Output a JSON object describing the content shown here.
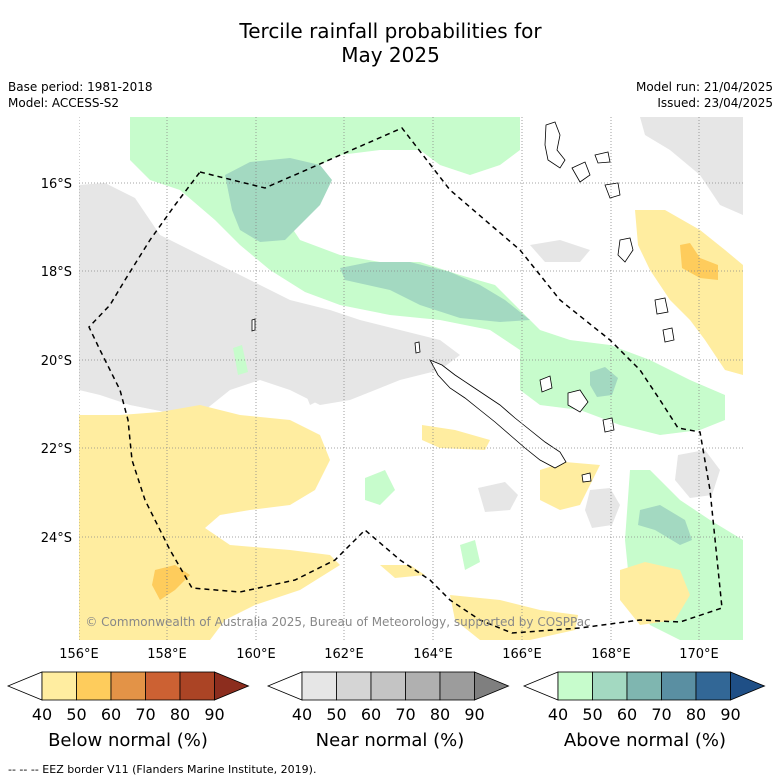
{
  "title_line1": "Tercile rainfall probabilities for",
  "title_line2": "May 2025",
  "base_period": "Base period: 1981-2018",
  "model": "Model: ACCESS-S2",
  "model_run": "Model run: 21/04/2025",
  "issued": "Issued: 23/04/2025",
  "copyright": "© Commonwealth of Australia 2025, Bureau of Meteorology, supported by COSPPac",
  "lat_labels": [
    "16°S",
    "18°S",
    "20°S",
    "22°S",
    "24°S"
  ],
  "lon_labels": [
    "156°E",
    "158°E",
    "160°E",
    "162°E",
    "164°E",
    "166°E",
    "168°E",
    "170°E"
  ],
  "colorbars": [
    {
      "title": "Below normal (%)",
      "ticks": [
        "40",
        "50",
        "60",
        "70",
        "80",
        "90"
      ],
      "colors": [
        "#ffffff",
        "#ffeda0",
        "#fecc5c",
        "#e39347",
        "#cc6133",
        "#ab4425",
        "#8c2d1e"
      ]
    },
    {
      "title": "Near normal (%)",
      "ticks": [
        "40",
        "50",
        "60",
        "70",
        "80",
        "90"
      ],
      "colors": [
        "#ffffff",
        "#e6e6e6",
        "#d5d5d5",
        "#c4c4c4",
        "#b0b0b0",
        "#9c9c9c",
        "#7f7f7f"
      ]
    },
    {
      "title": "Above normal (%)",
      "ticks": [
        "40",
        "50",
        "60",
        "70",
        "80",
        "90"
      ],
      "colors": [
        "#ffffff",
        "#c7fccc",
        "#a3d9c1",
        "#7fb6b0",
        "#5a8fa2",
        "#326796",
        "#1f4f86"
      ]
    }
  ],
  "footer": "--  --  -- EEZ border V11 (Flanders Marine Institute, 2019)."
}
